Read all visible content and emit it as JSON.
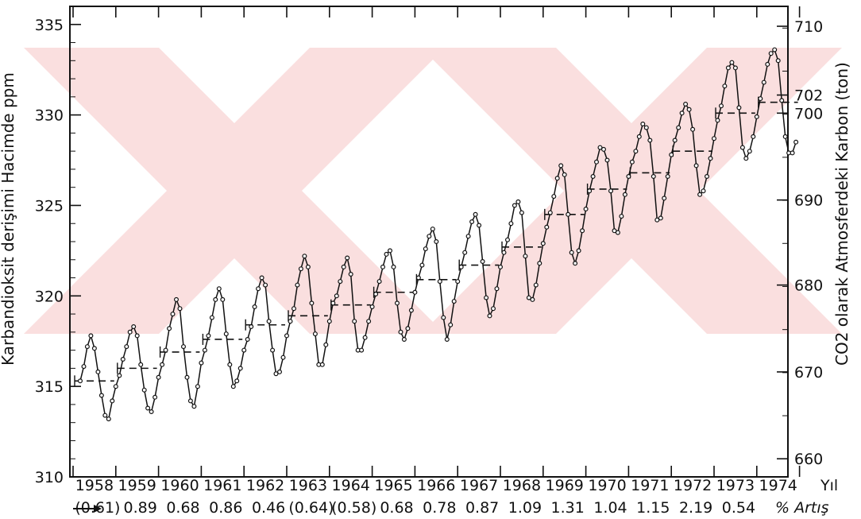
{
  "chart_data": {
    "type": "line",
    "ylabel": "Karbandioksit derişimi Hacimde ppm",
    "ylabel_right": "CO2 olarak Atmosferdeki Karbon (ton)",
    "xlabel": "Yıl",
    "increase_label": "% Artış",
    "ylim": [
      310,
      336
    ],
    "yticks": [
      310,
      315,
      320,
      325,
      330,
      335
    ],
    "yticks_right": [
      "660",
      "670",
      "680",
      "690",
      "700",
      "702",
      "710"
    ],
    "right_tick_values_ppm": [
      311.0,
      315.8,
      320.6,
      325.3,
      330.1,
      331.1,
      334.9
    ],
    "years": [
      "1958",
      "1959",
      "1960",
      "1961",
      "1962",
      "1963",
      "1964",
      "1965",
      "1966",
      "1967",
      "1968",
      "1969",
      "1970",
      "1971",
      "1972",
      "1973",
      "1974"
    ],
    "year_labels": [
      "1958",
      "1959",
      "1960",
      "1961",
      "1962",
      "1963",
      "1964",
      "1965",
      "1966",
      "1967",
      "1968",
      "1969",
      "1970",
      "1971",
      "1972",
      "1973",
      "1974"
    ],
    "increase_rates": [
      "(0.61)",
      "0.89",
      "0.68",
      "0.86",
      "0.46",
      "(0.64)",
      "(0.58)",
      "0.68",
      "0.78",
      "0.87",
      "1.09",
      "1.31",
      "1.04",
      "1.15",
      "2.19",
      "0.54"
    ],
    "monthly_series": {
      "name": "",
      "start": "1958-03",
      "values": [
        315.3,
        316.1,
        317.2,
        317.8,
        317.1,
        315.8,
        314.5,
        313.4,
        313.2,
        314.2,
        315.0,
        315.6,
        316.5,
        317.2,
        318.0,
        318.3,
        317.8,
        316.2,
        314.8,
        313.8,
        313.6,
        314.4,
        315.5,
        316.2,
        317.0,
        318.2,
        319.0,
        319.8,
        319.3,
        317.2,
        315.5,
        314.2,
        313.9,
        315.0,
        316.3,
        317.0,
        317.8,
        318.8,
        319.8,
        320.4,
        319.8,
        317.9,
        316.2,
        315.0,
        315.3,
        316.0,
        317.0,
        317.6,
        318.3,
        319.4,
        320.4,
        321.0,
        320.6,
        318.6,
        317.0,
        315.7,
        315.8,
        316.6,
        317.8,
        318.6,
        319.3,
        320.6,
        321.5,
        322.2,
        321.6,
        319.6,
        317.9,
        316.2,
        316.2,
        317.3,
        318.6,
        319.6,
        320.0,
        320.8,
        321.6,
        322.1,
        321.2,
        318.6,
        317.0,
        317.0,
        317.7,
        318.6,
        319.4,
        320.1,
        320.8,
        321.6,
        322.3,
        322.5,
        321.6,
        319.6,
        318.0,
        317.6,
        318.2,
        319.2,
        320.2,
        321.0,
        321.7,
        322.6,
        323.3,
        323.7,
        323.0,
        320.8,
        318.8,
        317.6,
        318.4,
        319.7,
        320.8,
        321.6,
        322.4,
        323.3,
        324.1,
        324.5,
        323.9,
        321.9,
        319.9,
        318.9,
        319.3,
        320.4,
        321.6,
        322.4,
        323.1,
        324.0,
        325.0,
        325.2,
        324.6,
        322.2,
        319.9,
        319.8,
        320.6,
        321.8,
        322.9,
        323.8,
        324.6,
        325.5,
        326.5,
        327.2,
        326.7,
        324.5,
        322.4,
        321.8,
        322.5,
        323.6,
        324.8,
        325.8,
        326.6,
        327.4,
        328.2,
        328.1,
        327.5,
        325.8,
        323.6,
        323.5,
        324.4,
        325.6,
        326.6,
        327.4,
        328.0,
        328.8,
        329.5,
        329.3,
        328.6,
        326.6,
        324.2,
        324.3,
        325.4,
        326.6,
        327.8,
        328.6,
        329.3,
        330.1,
        330.6,
        330.3,
        329.2,
        327.2,
        325.6,
        325.8,
        326.6,
        327.6,
        328.7,
        329.7,
        330.5,
        331.6,
        332.6,
        332.9,
        332.6,
        330.4,
        328.2,
        327.6,
        328.0,
        328.8,
        329.9,
        330.9,
        331.8,
        332.8,
        333.4,
        333.6,
        333.0,
        330.8,
        328.8,
        327.9,
        327.9,
        328.5
      ]
    },
    "annual_means": [
      315.3,
      316.0,
      316.9,
      317.6,
      318.4,
      318.9,
      319.5,
      320.2,
      320.9,
      321.7,
      322.7,
      324.5,
      325.9,
      326.8,
      328.0,
      330.1,
      330.7
    ]
  }
}
